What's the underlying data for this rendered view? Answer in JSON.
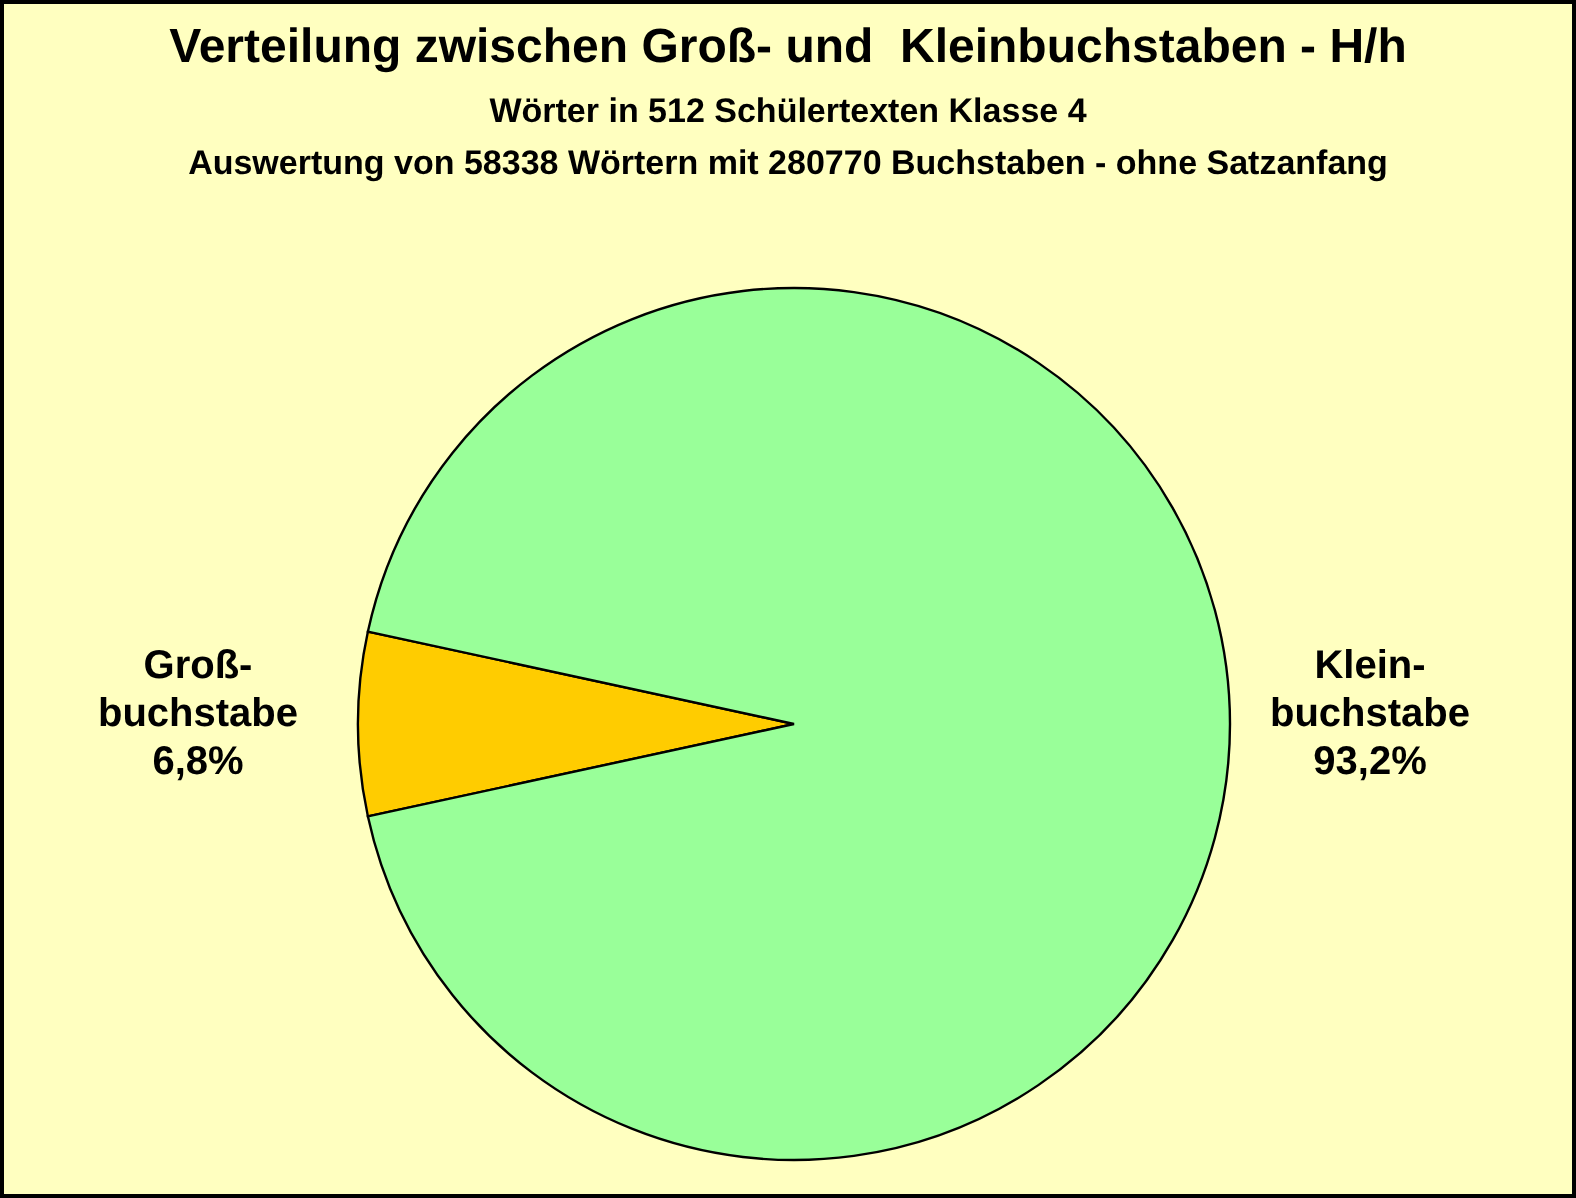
{
  "chart_data": {
    "type": "pie",
    "title": "Verteilung zwischen Groß- und  Kleinbuchstaben - H/h",
    "subtitle": "Wörter in 512 Schülertexten Klasse 4",
    "annotations": [
      "Auswertung von 58338 Wörtern mit 280770 Buchstaben - ohne Satzanfang"
    ],
    "categories": [
      "Groß-buchstabe",
      "Klein-buchstabe"
    ],
    "values": [
      6.8,
      93.2
    ],
    "colors": [
      "#ffcc00",
      "#99ff99"
    ],
    "value_labels": [
      "6,8%",
      "93,2%"
    ]
  }
}
